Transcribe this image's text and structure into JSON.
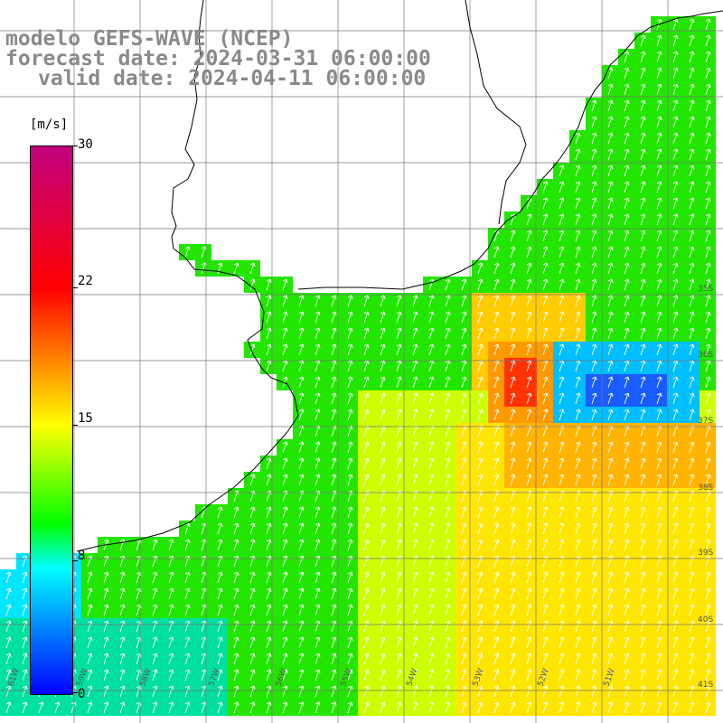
{
  "header": {
    "model_line": "modelo GEFS-WAVE (NCEP)",
    "forecast_line": "forecast date: 2024-03-31 06:00:00",
    "valid_line": "valid date: 2024-04-11 06:00:00"
  },
  "colorbar": {
    "unit": "[m/s]",
    "ticks": [
      "30",
      "22",
      "15",
      "8",
      "0"
    ]
  },
  "lat_labels": [
    "35S",
    "36S",
    "37S",
    "38S",
    "39S",
    "40S",
    "41S"
  ],
  "lon_labels": [
    "61W",
    "59W",
    "58W",
    "57W",
    "56W",
    "55W",
    "54W",
    "53W",
    "52W",
    "51W"
  ],
  "colors": {
    "ocean_green": "#22e600",
    "blue_core": "#1a5cff",
    "red_core": "#ff3300",
    "yellow_band": "#ffe600",
    "header_gray": "#8a8a8a"
  }
}
